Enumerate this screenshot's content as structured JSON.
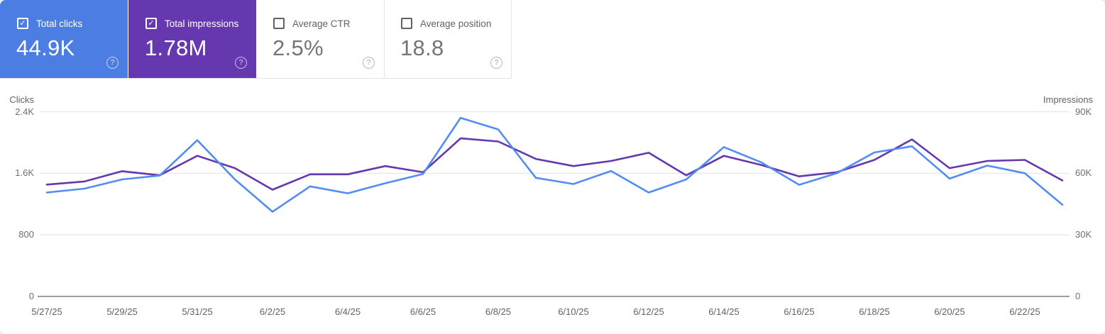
{
  "cards": [
    {
      "label": "Total clicks",
      "value": "44.9K",
      "checked": true,
      "bg": "#4c7de2"
    },
    {
      "label": "Total impressions",
      "value": "1.78M",
      "checked": true,
      "bg": "#6538b0"
    },
    {
      "label": "Average CTR",
      "value": "2.5%",
      "checked": false,
      "bg": ""
    },
    {
      "label": "Average position",
      "value": "18.8",
      "checked": false,
      "bg": ""
    }
  ],
  "icons": {
    "checkbox_check": "✓",
    "help_glyph": "?"
  },
  "colors": {
    "clicks_card": "#4c7de2",
    "impressions_card": "#6538b0",
    "clicks_line": "#548df2",
    "impressions_line": "#6438ae",
    "grid": "#e8eaed",
    "zero_line": "#9aa0a6",
    "tick_text": "#5f6368",
    "page_bg": "#edf0f3"
  },
  "chart_data": {
    "type": "line",
    "x": [
      "5/27/25",
      "5/28/25",
      "5/29/25",
      "5/30/25",
      "5/31/25",
      "6/1/25",
      "6/2/25",
      "6/3/25",
      "6/4/25",
      "6/5/25",
      "6/6/25",
      "6/7/25",
      "6/8/25",
      "6/9/25",
      "6/10/25",
      "6/11/25",
      "6/12/25",
      "6/13/25",
      "6/14/25",
      "6/15/25",
      "6/16/25",
      "6/17/25",
      "6/18/25",
      "6/19/25",
      "6/20/25",
      "6/21/25",
      "6/22/25",
      "6/23/25"
    ],
    "x_tick_labels": [
      "5/27/25",
      "5/29/25",
      "5/31/25",
      "6/2/25",
      "6/4/25",
      "6/6/25",
      "6/8/25",
      "6/10/25",
      "6/12/25",
      "6/14/25",
      "6/16/25",
      "6/18/25",
      "6/20/25",
      "6/22/25"
    ],
    "series": [
      {
        "name": "Impressions",
        "axis": "right",
        "color": "#6438ae",
        "values": [
          54500,
          56000,
          61000,
          59000,
          68500,
          62500,
          52000,
          59500,
          59500,
          63500,
          60500,
          77000,
          75500,
          67000,
          63500,
          66000,
          70000,
          59000,
          68500,
          64000,
          58500,
          60500,
          66500,
          76500,
          62500,
          66000,
          66500,
          56500
        ]
      },
      {
        "name": "Clicks",
        "axis": "left",
        "color": "#548df2",
        "values": [
          1350,
          1400,
          1520,
          1570,
          2030,
          1520,
          1100,
          1430,
          1340,
          1470,
          1590,
          2320,
          2170,
          1540,
          1460,
          1630,
          1350,
          1520,
          1940,
          1740,
          1450,
          1600,
          1870,
          1950,
          1530,
          1700,
          1600,
          1190
        ]
      }
    ],
    "left_axis": {
      "title": "Clicks",
      "ticks": [
        "0",
        "800",
        "1.6K",
        "2.4K"
      ],
      "max": 2400,
      "min": 0
    },
    "right_axis": {
      "title": "Impressions",
      "ticks": [
        "0",
        "30K",
        "60K",
        "90K"
      ],
      "max": 90000,
      "min": 0
    },
    "grid": true,
    "legend_position": "none"
  }
}
